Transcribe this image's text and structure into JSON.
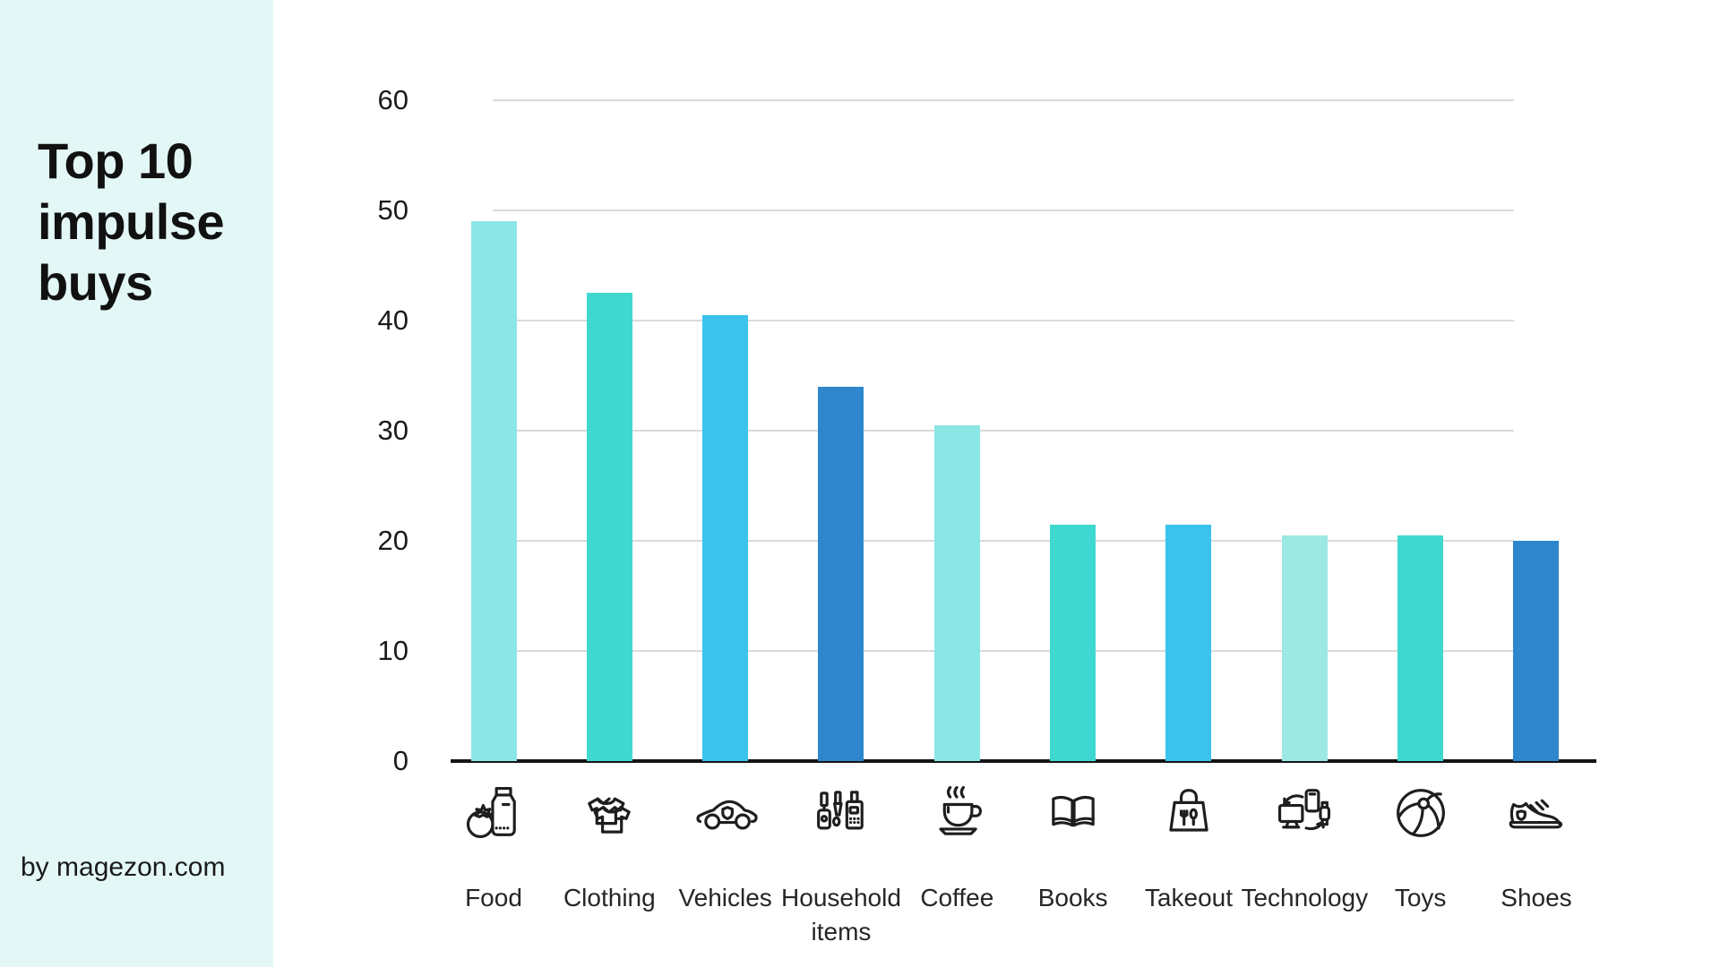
{
  "sidebar": {
    "title": "Top 10 impulse buys",
    "byline": "by magezon.com",
    "background": "#E3F8F6"
  },
  "chart_data": {
    "type": "bar",
    "title": "Top 10 impulse buys",
    "categories": [
      "Food",
      "Clothing",
      "Vehicles",
      "Household items",
      "Coffee",
      "Books",
      "Takeout",
      "Technology",
      "Toys",
      "Shoes"
    ],
    "values": [
      49,
      42.5,
      40.5,
      34,
      30.5,
      21.5,
      21.5,
      20.5,
      20.5,
      20
    ],
    "bar_colors": [
      "#8BE7E6",
      "#3FD8D0",
      "#3AC3ED",
      "#2E87CC",
      "#8BE7E6",
      "#3FD8D0",
      "#3AC3ED",
      "#9BE9E2",
      "#3FD8D0",
      "#2E87CC"
    ],
    "icons": [
      "food-icon",
      "clothing-icon",
      "vehicles-icon",
      "household-items-icon",
      "coffee-icon",
      "books-icon",
      "takeout-icon",
      "technology-icon",
      "toys-icon",
      "shoes-icon"
    ],
    "xlabel": "",
    "ylabel": "",
    "ylim": [
      0,
      60
    ],
    "yticks": [
      0,
      10,
      20,
      30,
      40,
      50,
      60
    ],
    "grid": true,
    "legend": false,
    "gridline_color": "#DADADA",
    "axis_color": "#151515",
    "tick_label_color": "#1A1A1A",
    "category_label_color": "#262626",
    "icon_color": "#1E1E1E"
  }
}
